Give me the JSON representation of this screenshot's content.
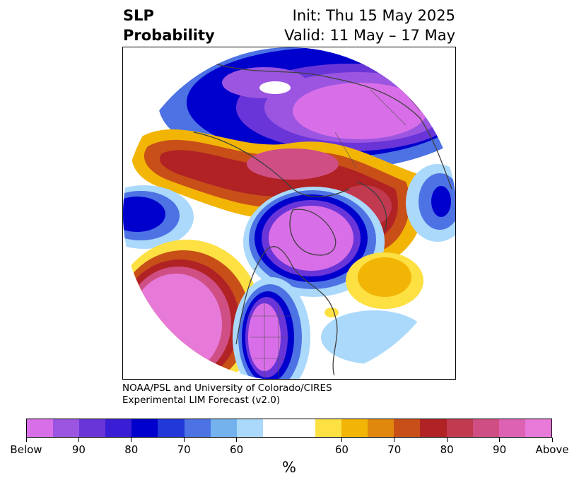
{
  "header": {
    "variable_line1": "SLP",
    "variable_line2": "Probability",
    "init_text": "Init: Thu 15 May 2025",
    "valid_text": "Valid: 11 May – 17 May"
  },
  "credit": {
    "line1": "NOAA/PSL and University of Colorado/CIRES",
    "line2": "Experimental LIM Forecast (v2.0)"
  },
  "colorbar": {
    "colors": [
      "#d96fe8",
      "#9b55e0",
      "#6a35d8",
      "#3a1ed6",
      "#0000cd",
      "#2338d8",
      "#4c72e4",
      "#74b2ee",
      "#abd9fb",
      "#ffffff",
      "#ffffff",
      "#fde042",
      "#f2b506",
      "#e0870e",
      "#c84f18",
      "#b02224",
      "#c23a50",
      "#cf4f84",
      "#dd62b4",
      "#e77ad9"
    ],
    "tick_labels": [
      {
        "text": "Below",
        "index": 0
      },
      {
        "text": "90",
        "index": 2
      },
      {
        "text": "80",
        "index": 4
      },
      {
        "text": "70",
        "index": 6
      },
      {
        "text": "60",
        "index": 8
      },
      {
        "text": "60",
        "index": 12
      },
      {
        "text": "70",
        "index": 14
      },
      {
        "text": "80",
        "index": 16
      },
      {
        "text": "90",
        "index": 18
      },
      {
        "text": "Above",
        "index": 20
      }
    ],
    "unit": "%"
  },
  "map": {
    "projection": "north-polar-stereographic",
    "regions": [
      {
        "name": "north-atlantic-below",
        "category": "Below",
        "color": "#d96fe8"
      },
      {
        "name": "pacific-above",
        "category": "Above",
        "color": "#e77ad9"
      },
      {
        "name": "western-us-below",
        "category": "Below",
        "color": "#d96fe8"
      },
      {
        "name": "eurasia-below",
        "category": "Below",
        "color": "#d96fe8"
      },
      {
        "name": "arctic-above",
        "category": "Above",
        "color": "#b02224"
      }
    ]
  }
}
